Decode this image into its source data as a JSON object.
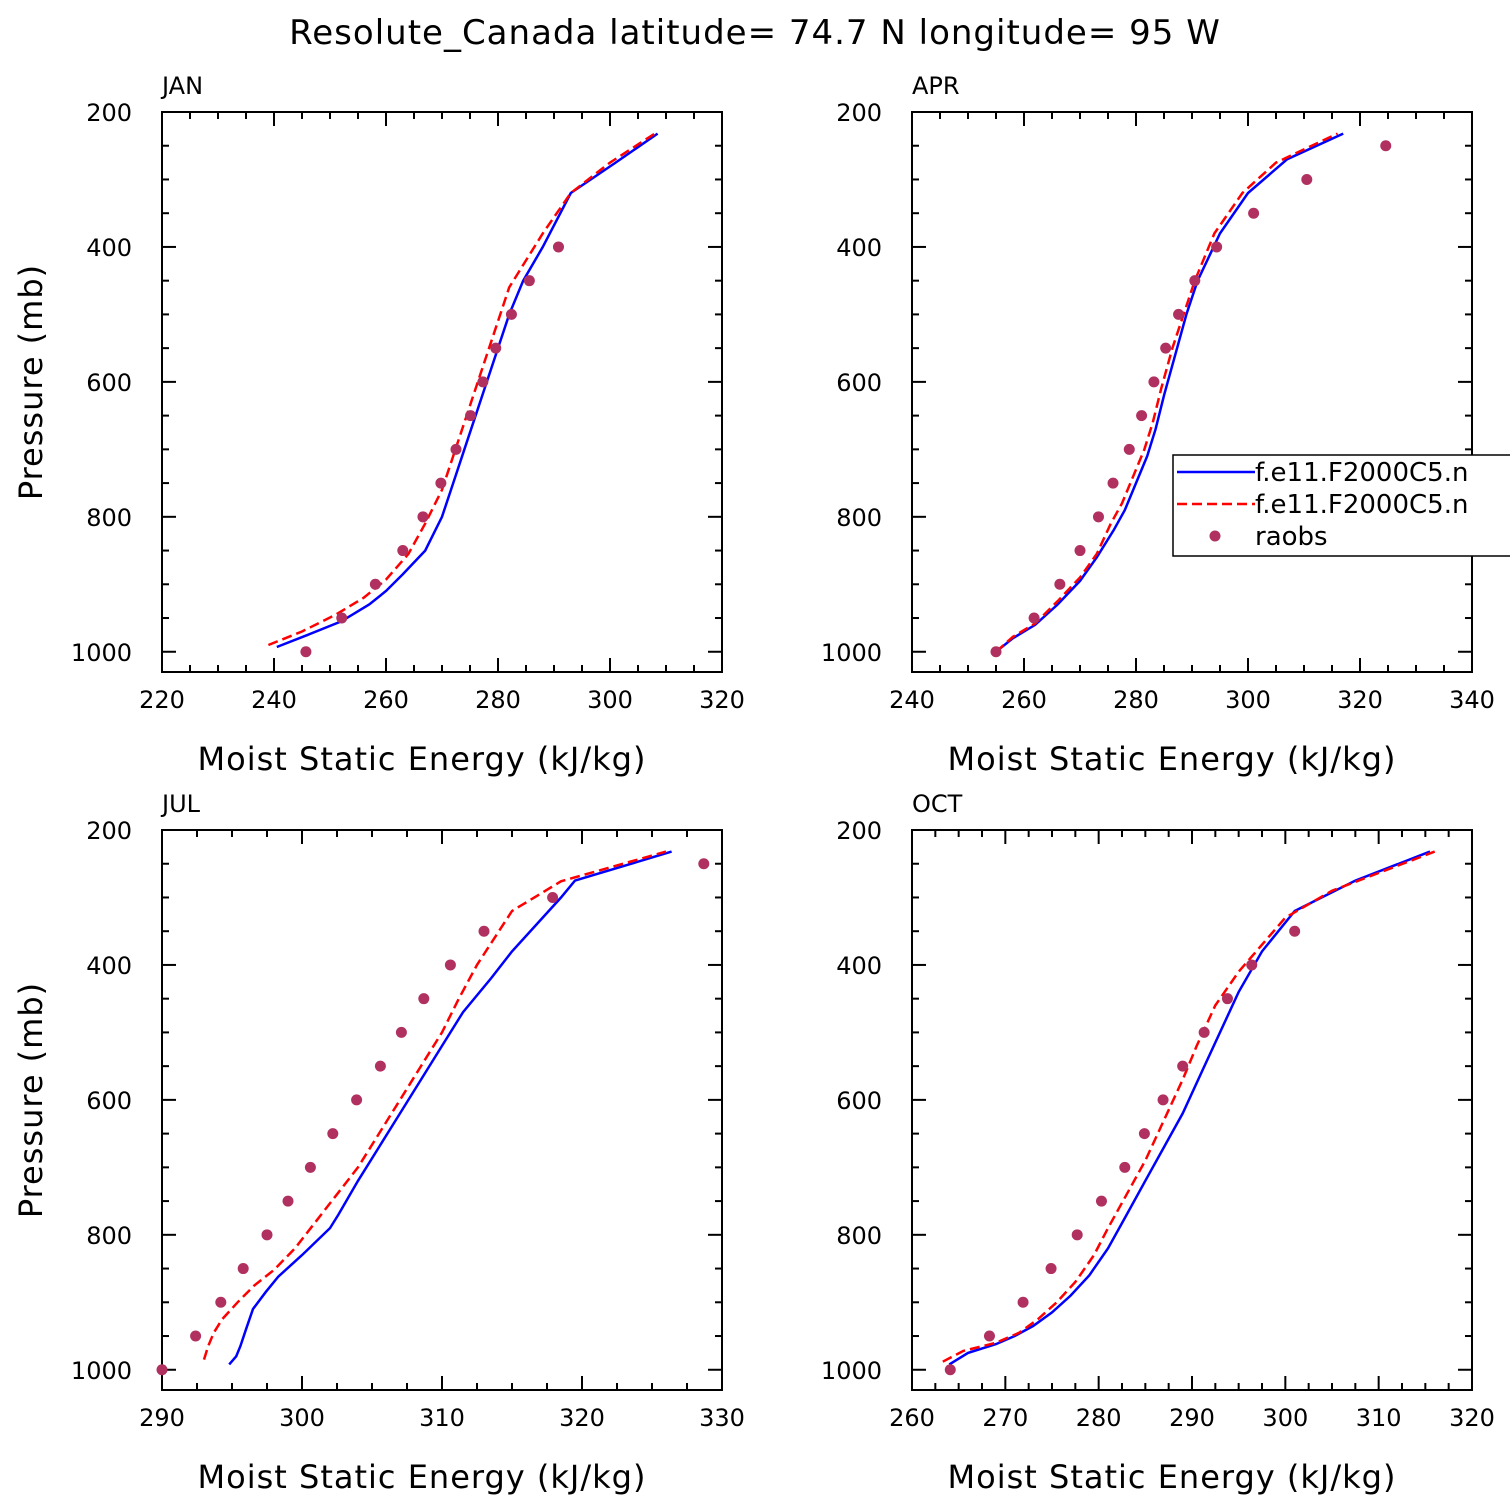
{
  "title": "Resolute_Canada  latitude= 74.7 N longitude= 95 W",
  "colors": {
    "model1": "#0000ff",
    "model2": "#ff0000",
    "raobs": "#b03060",
    "axes": "#000000",
    "background": "#ffffff"
  },
  "legend": {
    "entries": [
      {
        "label": "f.e11.F2000C5.n",
        "style": "solid",
        "color": "#0000ff"
      },
      {
        "label": "f.e11.F2000C5.n",
        "style": "dashed",
        "color": "#ff0000"
      },
      {
        "label": "raobs",
        "style": "marker",
        "color": "#b03060"
      }
    ],
    "placement": "right, inside APR panel (clipped at figure edge)"
  },
  "chart_data": [
    {
      "type": "line",
      "panel": "JAN",
      "xlabel": "Moist Static Energy (kJ/kg)",
      "ylabel": "Pressure (mb)",
      "xlim": [
        220,
        320
      ],
      "ylim": [
        1030,
        200
      ],
      "xticks": [
        220,
        240,
        260,
        280,
        300,
        320
      ],
      "yticks": [
        200,
        400,
        600,
        800,
        1000
      ],
      "series": [
        {
          "name": "f.e11.F2000C5.n",
          "style": "solid",
          "points": [
            [
              240.5,
              993
            ],
            [
              246,
              975
            ],
            [
              252,
              955
            ],
            [
              257,
              930
            ],
            [
              260,
              910
            ],
            [
              263,
              885
            ],
            [
              267,
              850
            ],
            [
              270,
              800
            ],
            [
              272,
              750
            ],
            [
              274,
              700
            ],
            [
              276,
              650
            ],
            [
              278,
              600
            ],
            [
              280,
              550
            ],
            [
              282,
              500
            ],
            [
              284.5,
              450
            ],
            [
              288,
              400
            ],
            [
              293,
              320
            ],
            [
              301,
              275
            ],
            [
              308.5,
              232
            ]
          ]
        },
        {
          "name": "f.e11.F2000C5.n",
          "style": "dashed",
          "points": [
            [
              239,
              990
            ],
            [
              245,
              970
            ],
            [
              251,
              945
            ],
            [
              256,
              920
            ],
            [
              260,
              893
            ],
            [
              264,
              855
            ],
            [
              267,
              810
            ],
            [
              270,
              760
            ],
            [
              272,
              710
            ],
            [
              274,
              660
            ],
            [
              276,
              610
            ],
            [
              278,
              560
            ],
            [
              280,
              510
            ],
            [
              282,
              460
            ],
            [
              285,
              420
            ],
            [
              288,
              380
            ],
            [
              293,
              320
            ],
            [
              300,
              275
            ],
            [
              308,
              232
            ]
          ]
        },
        {
          "name": "raobs",
          "style": "marker",
          "points": [
            [
              245.7,
              1000
            ],
            [
              252.1,
              950
            ],
            [
              258.1,
              900
            ],
            [
              263,
              850
            ],
            [
              266.6,
              800
            ],
            [
              269.8,
              750
            ],
            [
              272.5,
              700
            ],
            [
              275.1,
              650
            ],
            [
              277.3,
              600
            ],
            [
              279.6,
              550
            ],
            [
              282.4,
              500
            ],
            [
              285.6,
              450
            ],
            [
              290.8,
              400
            ]
          ]
        }
      ]
    },
    {
      "type": "line",
      "panel": "APR",
      "xlabel": "Moist Static Energy (kJ/kg)",
      "ylabel": "",
      "xlim": [
        240,
        340
      ],
      "ylim": [
        1030,
        200
      ],
      "xticks": [
        240,
        260,
        280,
        300,
        320,
        340
      ],
      "yticks": [
        200,
        400,
        600,
        800,
        1000
      ],
      "series": [
        {
          "name": "f.e11.F2000C5.n",
          "style": "solid",
          "points": [
            [
              255,
              1000
            ],
            [
              258,
              980
            ],
            [
              262,
              960
            ],
            [
              266,
              930
            ],
            [
              270,
              895
            ],
            [
              273,
              860
            ],
            [
              276,
              820
            ],
            [
              278,
              790
            ],
            [
              280,
              750
            ],
            [
              282,
              710
            ],
            [
              283.5,
              670
            ],
            [
              285,
              620
            ],
            [
              287,
              560
            ],
            [
              289,
              500
            ],
            [
              291,
              450
            ],
            [
              295,
              380
            ],
            [
              300,
              320
            ],
            [
              307,
              270
            ],
            [
              317,
              232
            ]
          ]
        },
        {
          "name": "f.e11.F2000C5.n",
          "style": "dashed",
          "points": [
            [
              255,
              1000
            ],
            [
              258,
              978
            ],
            [
              262,
              958
            ],
            [
              266,
              925
            ],
            [
              270,
              890
            ],
            [
              273,
              855
            ],
            [
              275.5,
              810
            ],
            [
              277.5,
              780
            ],
            [
              279.5,
              740
            ],
            [
              281.5,
              700
            ],
            [
              283,
              660
            ],
            [
              284.5,
              610
            ],
            [
              286.5,
              550
            ],
            [
              288.5,
              500
            ],
            [
              290.5,
              450
            ],
            [
              294,
              380
            ],
            [
              299,
              320
            ],
            [
              305,
              275
            ],
            [
              316,
              232
            ]
          ]
        },
        {
          "name": "raobs",
          "style": "marker",
          "points": [
            [
              255,
              1000
            ],
            [
              261.8,
              950
            ],
            [
              266.4,
              900
            ],
            [
              270,
              850
            ],
            [
              273.3,
              800
            ],
            [
              275.9,
              750
            ],
            [
              278.8,
              700
            ],
            [
              281,
              650
            ],
            [
              283.2,
              600
            ],
            [
              285.3,
              550
            ],
            [
              287.6,
              500
            ],
            [
              290.5,
              450
            ],
            [
              294.4,
              400
            ],
            [
              301,
              350
            ],
            [
              310.5,
              300
            ],
            [
              324.6,
              250
            ]
          ]
        }
      ]
    },
    {
      "type": "line",
      "panel": "JUL",
      "xlabel": "Moist Static Energy (kJ/kg)",
      "ylabel": "Pressure (mb)",
      "xlim": [
        290,
        330
      ],
      "ylim": [
        1030,
        200
      ],
      "xticks": [
        290,
        300,
        310,
        320,
        330
      ],
      "yticks": [
        200,
        400,
        600,
        800,
        1000
      ],
      "series": [
        {
          "name": "f.e11.F2000C5.n",
          "style": "solid",
          "points": [
            [
              294.8,
              992
            ],
            [
              295.3,
              980
            ],
            [
              295.6,
              965
            ],
            [
              296,
              940
            ],
            [
              296.5,
              910
            ],
            [
              297.4,
              885
            ],
            [
              298.3,
              862
            ],
            [
              300,
              830
            ],
            [
              302,
              790
            ],
            [
              302.6,
              770
            ],
            [
              304,
              720
            ],
            [
              305.5,
              670
            ],
            [
              307,
              620
            ],
            [
              308.5,
              570
            ],
            [
              310,
              520
            ],
            [
              311.5,
              470
            ],
            [
              313.5,
              420
            ],
            [
              315,
              380
            ],
            [
              318.5,
              300
            ],
            [
              319.5,
              275
            ],
            [
              326.4,
              232
            ]
          ]
        },
        {
          "name": "f.e11.F2000C5.n",
          "style": "dashed",
          "points": [
            [
              293,
              985
            ],
            [
              293.3,
              965
            ],
            [
              293.7,
              945
            ],
            [
              294.3,
              925
            ],
            [
              295.4,
              900
            ],
            [
              296.6,
              875
            ],
            [
              298,
              852
            ],
            [
              299.5,
              820
            ],
            [
              301,
              780
            ],
            [
              302.5,
              740
            ],
            [
              304,
              700
            ],
            [
              305.5,
              650
            ],
            [
              307,
              600
            ],
            [
              308.5,
              550
            ],
            [
              310,
              500
            ],
            [
              311.2,
              450
            ],
            [
              312.5,
              400
            ],
            [
              315,
              320
            ],
            [
              318.5,
              276
            ],
            [
              326,
              232
            ]
          ]
        },
        {
          "name": "raobs",
          "style": "marker",
          "points": [
            [
              290,
              1000
            ],
            [
              292.4,
              950
            ],
            [
              294.2,
              900
            ],
            [
              295.8,
              850
            ],
            [
              297.5,
              800
            ],
            [
              299,
              750
            ],
            [
              300.6,
              700
            ],
            [
              302.2,
              650
            ],
            [
              303.9,
              600
            ],
            [
              305.6,
              550
            ],
            [
              307.1,
              500
            ],
            [
              308.7,
              450
            ],
            [
              310.6,
              400
            ],
            [
              313,
              350
            ],
            [
              317.9,
              300
            ],
            [
              328.7,
              250
            ]
          ]
        }
      ]
    },
    {
      "type": "line",
      "panel": "OCT",
      "xlabel": "Moist Static Energy (kJ/kg)",
      "ylabel": "",
      "xlim": [
        260,
        320
      ],
      "ylim": [
        1030,
        200
      ],
      "xticks": [
        260,
        270,
        280,
        290,
        300,
        310,
        320
      ],
      "yticks": [
        200,
        400,
        600,
        800,
        1000
      ],
      "series": [
        {
          "name": "f.e11.F2000C5.n",
          "style": "solid",
          "points": [
            [
              264,
              992
            ],
            [
              266,
              975
            ],
            [
              269,
              962
            ],
            [
              271,
              950
            ],
            [
              273,
              935
            ],
            [
              275,
              915
            ],
            [
              277,
              890
            ],
            [
              279,
              860
            ],
            [
              281,
              820
            ],
            [
              283,
              770
            ],
            [
              285,
              720
            ],
            [
              287,
              670
            ],
            [
              289,
              620
            ],
            [
              291,
              560
            ],
            [
              293,
              500
            ],
            [
              295,
              440
            ],
            [
              297.5,
              380
            ],
            [
              301,
              320
            ],
            [
              307.5,
              275
            ],
            [
              315.5,
              232
            ]
          ]
        },
        {
          "name": "f.e11.F2000C5.n",
          "style": "dashed",
          "points": [
            [
              263.3,
              988
            ],
            [
              265.5,
              972
            ],
            [
              269,
              960
            ],
            [
              271.5,
              945
            ],
            [
              273.5,
              925
            ],
            [
              275.5,
              900
            ],
            [
              277.5,
              870
            ],
            [
              279.5,
              830
            ],
            [
              281,
              790
            ],
            [
              283,
              740
            ],
            [
              285,
              690
            ],
            [
              287,
              630
            ],
            [
              289,
              570
            ],
            [
              290.5,
              520
            ],
            [
              292.5,
              460
            ],
            [
              295,
              410
            ],
            [
              297.5,
              370
            ],
            [
              300,
              330
            ],
            [
              305,
              290
            ],
            [
              316,
              232
            ]
          ]
        },
        {
          "name": "raobs",
          "style": "marker",
          "points": [
            [
              264.1,
              1000
            ],
            [
              268.3,
              950
            ],
            [
              271.9,
              900
            ],
            [
              274.9,
              850
            ],
            [
              277.7,
              800
            ],
            [
              280.3,
              750
            ],
            [
              282.8,
              700
            ],
            [
              284.9,
              650
            ],
            [
              286.9,
              600
            ],
            [
              289,
              550
            ],
            [
              291.3,
              500
            ],
            [
              293.8,
              450
            ],
            [
              296.4,
              400
            ],
            [
              301,
              350
            ]
          ]
        }
      ]
    }
  ]
}
